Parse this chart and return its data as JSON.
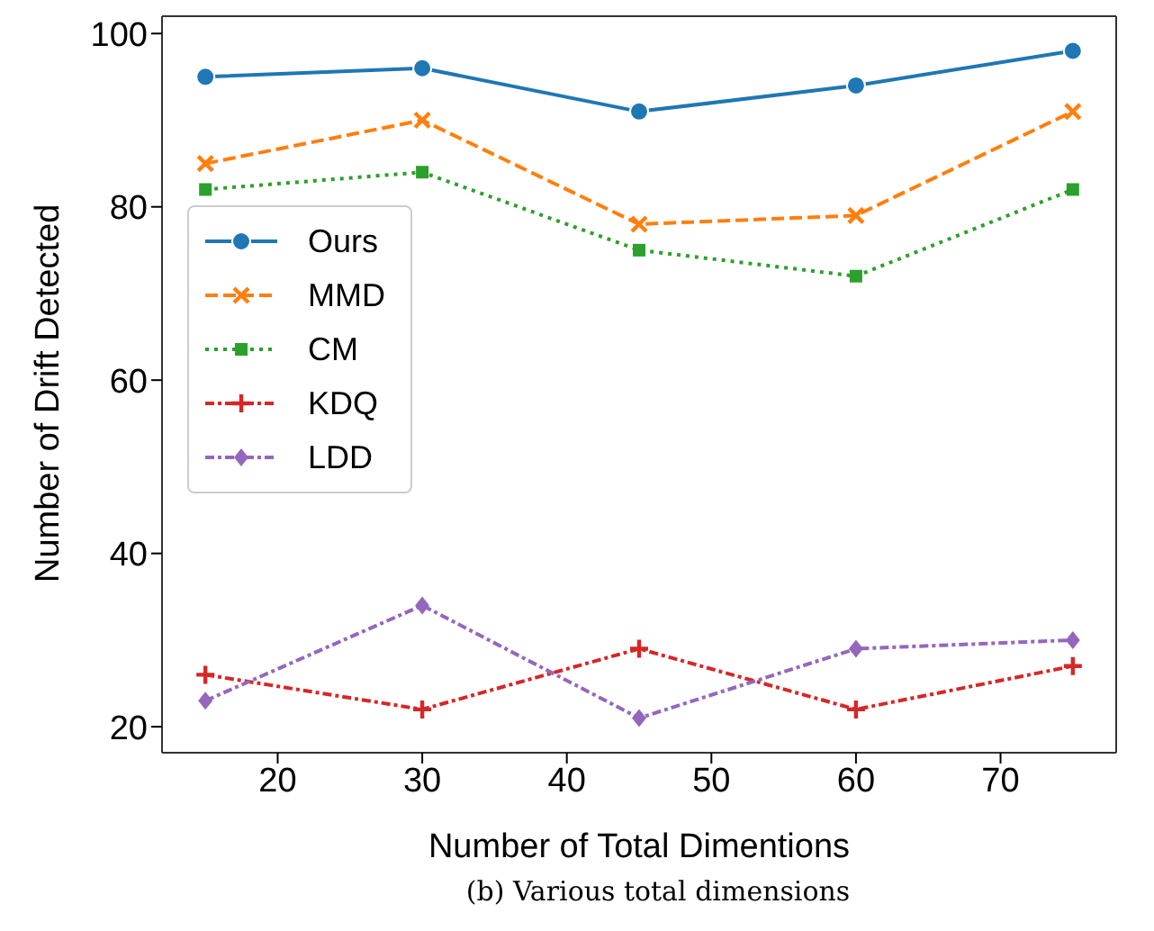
{
  "chart_data": {
    "type": "line",
    "xlabel": "Number of Total Dimentions",
    "ylabel": "Number of Drift Detected",
    "x": [
      15,
      30,
      45,
      60,
      75
    ],
    "series": [
      {
        "name": "Ours",
        "color": "#1f77b4",
        "marker": "circle",
        "line_style": "solid",
        "values": [
          95,
          96,
          91,
          94,
          98
        ]
      },
      {
        "name": "MMD",
        "color": "#ff7f0e",
        "marker": "cross",
        "line_style": "dashed",
        "values": [
          85,
          90,
          78,
          79,
          91
        ]
      },
      {
        "name": "CM",
        "color": "#2ca02c",
        "marker": "square",
        "line_style": "dotted",
        "values": [
          82,
          84,
          75,
          72,
          82
        ]
      },
      {
        "name": "KDQ",
        "color": "#d62728",
        "marker": "plus",
        "line_style": "dashdot",
        "values": [
          26,
          22,
          29,
          22,
          27
        ]
      },
      {
        "name": "LDD",
        "color": "#9467bd",
        "marker": "diamond",
        "line_style": "dashdot",
        "values": [
          23,
          34,
          21,
          29,
          30
        ]
      }
    ],
    "xlim": [
      12,
      78
    ],
    "xticks": [
      20,
      30,
      40,
      50,
      60,
      70
    ],
    "ylim": [
      17,
      102
    ],
    "yticks": [
      20,
      40,
      60,
      80,
      100
    ],
    "grid": false,
    "legend": "left",
    "annotations": [
      "(b) Various total dimensions"
    ]
  }
}
